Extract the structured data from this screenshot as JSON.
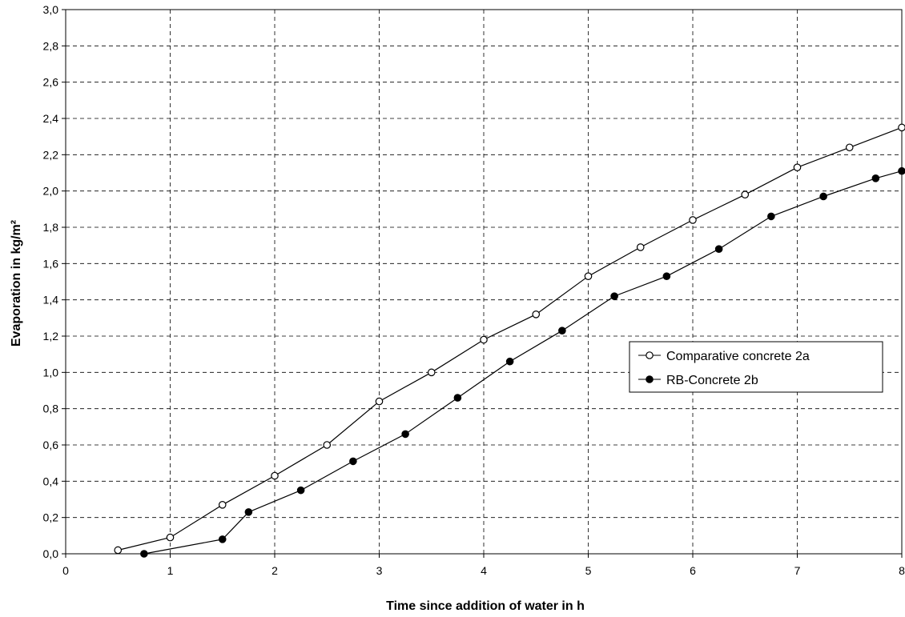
{
  "chart_data": {
    "type": "line",
    "title": "",
    "xlabel": "Time since addition of water in h",
    "ylabel": "Evaporation in kg/m²",
    "xlim": [
      0,
      8
    ],
    "ylim": [
      0,
      3.0
    ],
    "x_ticks": [
      "0",
      "1",
      "2",
      "3",
      "4",
      "5",
      "6",
      "7",
      "8"
    ],
    "y_ticks": [
      "0,0",
      "0,2",
      "0,4",
      "0,6",
      "0,8",
      "1,0",
      "1,2",
      "1,4",
      "1,6",
      "1,8",
      "2,0",
      "2,2",
      "2,4",
      "2,6",
      "2,8",
      "3,0"
    ],
    "grid": true,
    "grid_style": "dashed",
    "legend_position": "right-middle",
    "series": [
      {
        "name": "Comparative concrete 2a",
        "marker": "open-circle",
        "color": "#000000",
        "x": [
          0.5,
          1.0,
          1.5,
          2.0,
          2.5,
          3.0,
          3.5,
          4.0,
          4.5,
          5.0,
          5.5,
          6.0,
          6.5,
          7.0,
          7.5,
          8.0
        ],
        "y": [
          0.02,
          0.09,
          0.27,
          0.43,
          0.6,
          0.84,
          1.0,
          1.18,
          1.32,
          1.53,
          1.69,
          1.84,
          1.98,
          2.13,
          2.24,
          2.35
        ]
      },
      {
        "name": "RB-Concrete 2b",
        "marker": "filled-circle",
        "color": "#000000",
        "x": [
          0.75,
          1.5,
          1.75,
          2.25,
          2.75,
          3.25,
          3.75,
          4.25,
          4.75,
          5.25,
          5.75,
          6.25,
          6.75,
          7.25,
          7.75,
          8.0
        ],
        "y": [
          0.0,
          0.08,
          0.23,
          0.35,
          0.51,
          0.66,
          0.86,
          1.06,
          1.23,
          1.42,
          1.53,
          1.68,
          1.86,
          1.97,
          2.07,
          2.11
        ]
      }
    ]
  }
}
